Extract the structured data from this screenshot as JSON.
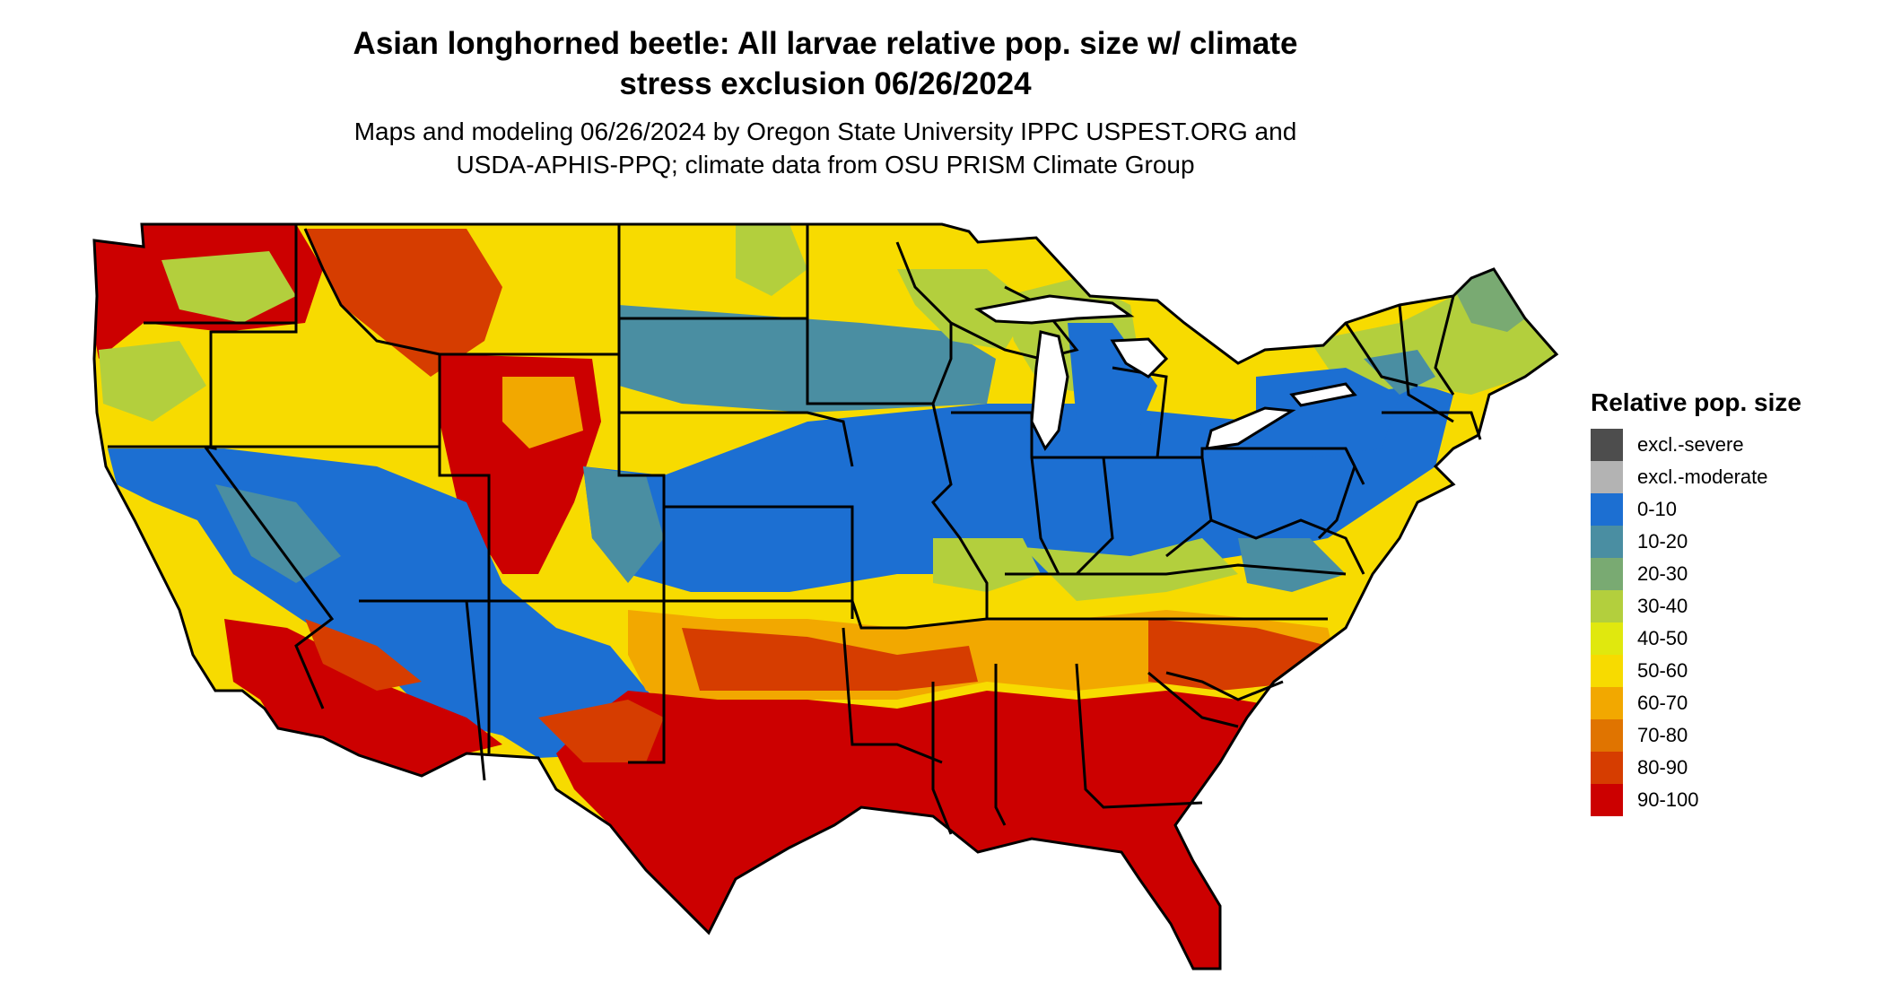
{
  "title_line1": "Asian longhorned beetle: All larvae relative pop. size w/ climate",
  "title_line2": "stress exclusion 06/26/2024",
  "subtitle_line1": "Maps and modeling 06/26/2024 by Oregon State University IPPC USPEST.ORG and",
  "subtitle_line2": "USDA-APHIS-PPQ; climate data from OSU PRISM Climate Group",
  "legend": {
    "title": "Relative pop. size",
    "items": [
      {
        "label": "excl.-severe",
        "color": "#4d4d4d"
      },
      {
        "label": "excl.-moderate",
        "color": "#b3b3b3"
      },
      {
        "label": "0-10",
        "color": "#1c6fd2"
      },
      {
        "label": "10-20",
        "color": "#4a8ea2"
      },
      {
        "label": "20-30",
        "color": "#79aa72"
      },
      {
        "label": "30-40",
        "color": "#b3cf3d"
      },
      {
        "label": "40-50",
        "color": "#e0e80e"
      },
      {
        "label": "50-60",
        "color": "#f7db00"
      },
      {
        "label": "60-70",
        "color": "#f2a800"
      },
      {
        "label": "70-80",
        "color": "#e07400"
      },
      {
        "label": "80-90",
        "color": "#d63d00"
      },
      {
        "label": "90-100",
        "color": "#cc0000"
      }
    ]
  }
}
